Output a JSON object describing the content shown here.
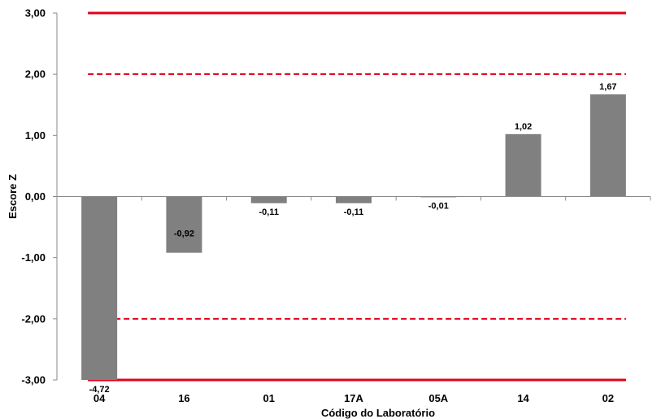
{
  "chart_data": {
    "type": "bar",
    "xlabel": "Código do Laboratório",
    "ylabel": "Escore Z",
    "categories": [
      "04",
      "16",
      "01",
      "17A",
      "05A",
      "14",
      "02"
    ],
    "values": [
      -4.72,
      -0.92,
      -0.11,
      -0.11,
      -0.01,
      1.02,
      1.67
    ],
    "value_labels": [
      "-4,72",
      "-0,92",
      "-0,11",
      "-0,11",
      "-0,01",
      "1,02",
      "1,67"
    ],
    "ylim": [
      -3,
      3
    ],
    "yticks": [
      3,
      2,
      1,
      0,
      -1,
      -2,
      -3
    ],
    "ytick_labels": [
      "3,00",
      "2,00",
      "1,00",
      "0,00",
      "-1,00",
      "-2,00",
      "-3,00"
    ],
    "reference_lines": [
      {
        "y": 3,
        "style": "solid"
      },
      {
        "y": 2,
        "style": "dashed"
      },
      {
        "y": -2,
        "style": "dashed"
      },
      {
        "y": -3,
        "style": "solid"
      }
    ],
    "grid": false,
    "legend": "none",
    "bar_color": "#808080",
    "reference_color": "#e3001b"
  }
}
